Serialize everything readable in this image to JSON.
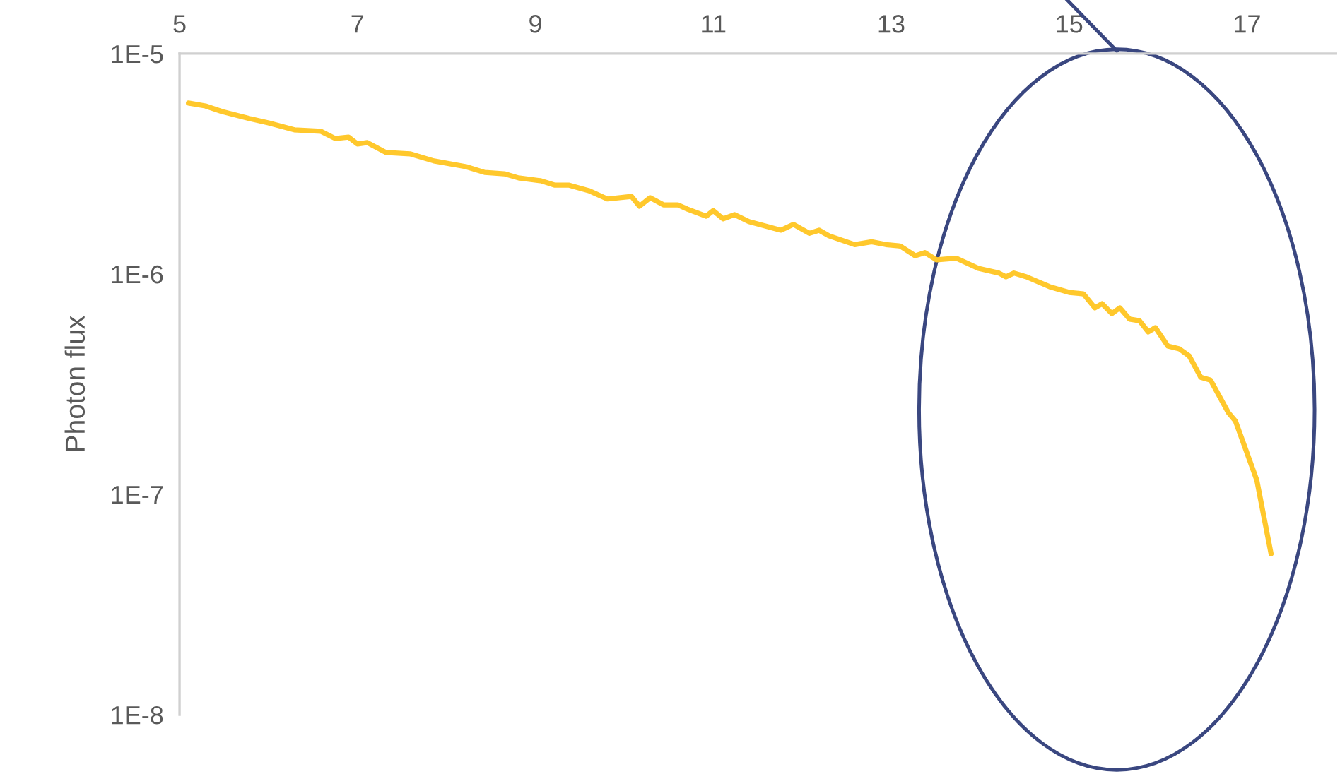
{
  "chart_data": {
    "type": "line",
    "ylabel": "Photon flux",
    "log": "y",
    "xlim": [
      5,
      18
    ],
    "xticks": [
      5,
      7,
      9,
      11,
      13,
      15,
      17
    ],
    "ylim": [
      1e-08,
      1e-05
    ],
    "yticks": [
      {
        "value": 1e-08,
        "label": "1E-8"
      },
      {
        "value": 1e-07,
        "label": "1E-7"
      },
      {
        "value": 1e-06,
        "label": "1E-6"
      },
      {
        "value": 1e-05,
        "label": "1E-5"
      }
    ],
    "grid": false,
    "marker": "none",
    "line_style": "solid",
    "series": [
      {
        "color": "#ffc82c",
        "x": [
          5.1,
          5.29,
          5.48,
          5.79,
          6.0,
          6.29,
          6.59,
          6.75,
          6.9,
          7.0,
          7.11,
          7.32,
          7.59,
          7.86,
          8.22,
          8.43,
          8.65,
          8.81,
          9.06,
          9.22,
          9.38,
          9.6,
          9.81,
          10.08,
          10.17,
          10.29,
          10.44,
          10.6,
          10.71,
          10.92,
          11.0,
          11.11,
          11.24,
          11.4,
          11.76,
          11.9,
          12.08,
          12.19,
          12.3,
          12.59,
          12.78,
          12.94,
          13.1,
          13.27,
          13.38,
          13.51,
          13.73,
          13.98,
          14.21,
          14.29,
          14.38,
          14.52,
          14.78,
          15.0,
          15.16,
          15.29,
          15.37,
          15.48,
          15.57,
          15.68,
          15.79,
          15.89,
          15.97,
          16.11,
          16.24,
          16.35,
          16.48,
          16.59,
          16.79,
          16.87,
          17.11,
          17.27
        ],
        "values": [
          5.97e-06,
          5.79e-06,
          5.46e-06,
          5.07e-06,
          4.85e-06,
          4.51e-06,
          4.44e-06,
          4.12e-06,
          4.18e-06,
          3.89e-06,
          3.95e-06,
          3.56e-06,
          3.51e-06,
          3.26e-06,
          3.07e-06,
          2.89e-06,
          2.85e-06,
          2.73e-06,
          2.65e-06,
          2.53e-06,
          2.53e-06,
          2.39e-06,
          2.19e-06,
          2.25e-06,
          2.03e-06,
          2.22e-06,
          2.06e-06,
          2.06e-06,
          1.97e-06,
          1.83e-06,
          1.94e-06,
          1.78e-06,
          1.86e-06,
          1.73e-06,
          1.58e-06,
          1.68e-06,
          1.53e-06,
          1.58e-06,
          1.49e-06,
          1.36e-06,
          1.4e-06,
          1.36e-06,
          1.34e-06,
          1.21e-06,
          1.25e-06,
          1.16e-06,
          1.18e-06,
          1.06e-06,
          1.01e-06,
          9.71e-07,
          1.01e-06,
          9.71e-07,
          8.76e-07,
          8.25e-07,
          8.13e-07,
          7.02e-07,
          7.33e-07,
          6.61e-07,
          7.02e-07,
          6.24e-07,
          6.14e-07,
          5.46e-07,
          5.71e-07,
          4.71e-07,
          4.57e-07,
          4.25e-07,
          3.4e-07,
          3.3e-07,
          2.35e-07,
          2.15e-07,
          1.16e-07,
          5.38e-08
        ]
      }
    ]
  }
}
